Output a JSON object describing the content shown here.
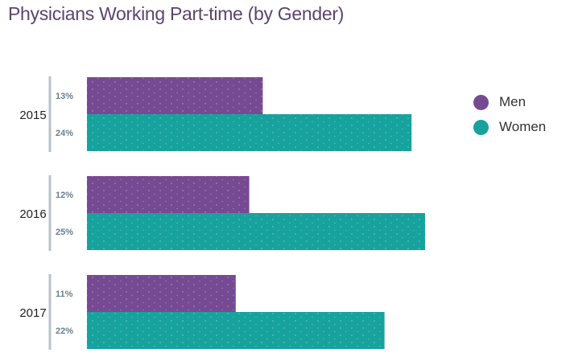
{
  "chart_data": {
    "type": "bar",
    "orientation": "horizontal",
    "title": "Physicians Working Part-time (by Gender)",
    "categories": [
      "2015",
      "2016",
      "2017"
    ],
    "series": [
      {
        "name": "Men",
        "color": "#764a93",
        "values": [
          13,
          12,
          11
        ],
        "labels": [
          "13%",
          "12%",
          "11%"
        ]
      },
      {
        "name": "Women",
        "color": "#17a29e",
        "values": [
          24,
          25,
          22
        ],
        "labels": [
          "24%",
          "25%",
          "22%"
        ]
      }
    ],
    "unit": "%",
    "xlim": [
      0,
      25
    ],
    "grid": false,
    "legend_position": "right"
  }
}
